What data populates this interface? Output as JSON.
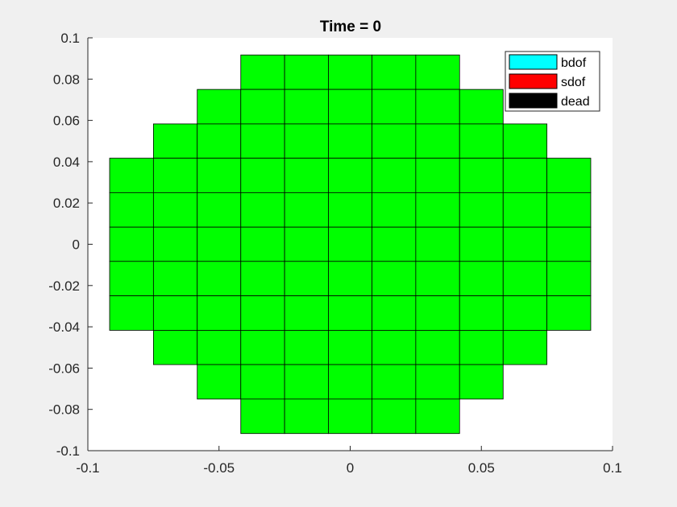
{
  "chart_data": {
    "type": "patch-mesh",
    "title": "Time = 0",
    "xlabel": "",
    "ylabel": "",
    "xlim": [
      -0.1,
      0.1
    ],
    "ylim": [
      -0.1,
      0.1
    ],
    "xticks": [
      -0.1,
      -0.05,
      0,
      0.05,
      0.1
    ],
    "xtick_labels": [
      "-0.1",
      "-0.05",
      "0",
      "0.05",
      "0.1"
    ],
    "yticks": [
      0.1,
      0.08,
      0.06,
      0.04,
      0.02,
      0,
      -0.02,
      -0.04,
      -0.06,
      -0.08,
      -0.1
    ],
    "ytick_labels": [
      "0.1",
      "0.08",
      "0.06",
      "0.04",
      "0.02",
      "0",
      "-0.02",
      "-0.04",
      "-0.06",
      "-0.08",
      "-0.1"
    ],
    "grid": false,
    "legend_position": "top-right",
    "legend": [
      {
        "label": "bdof",
        "color": "#00ffff"
      },
      {
        "label": "sdof",
        "color": "#ff0000"
      },
      {
        "label": "dead",
        "color": "#000000"
      }
    ],
    "cell_color": "#00ff00",
    "edge_color": "#000000",
    "cells": {
      "x_edges": [
        -0.0917,
        -0.075,
        -0.0583,
        -0.0417,
        -0.025,
        -0.0083,
        0.0083,
        0.025,
        0.0417,
        0.0583,
        0.075,
        0.0917
      ],
      "rows": [
        {
          "y": [
            0.075,
            0.0917
          ],
          "x": [
            -0.0417,
            0.0417
          ]
        },
        {
          "y": [
            0.0583,
            0.075
          ],
          "x": [
            -0.0583,
            0.0583
          ]
        },
        {
          "y": [
            0.0417,
            0.0583
          ],
          "x": [
            -0.075,
            0.075
          ]
        },
        {
          "y": [
            0.025,
            0.0417
          ],
          "x": [
            -0.0917,
            0.0917
          ]
        },
        {
          "y": [
            0.0083,
            0.025
          ],
          "x": [
            -0.0917,
            0.0917
          ]
        },
        {
          "y": [
            -0.0083,
            0.0083
          ],
          "x": [
            -0.0917,
            0.0917
          ]
        },
        {
          "y": [
            -0.025,
            -0.0083
          ],
          "x": [
            -0.0917,
            0.0917
          ]
        },
        {
          "y": [
            -0.0417,
            -0.025
          ],
          "x": [
            -0.0917,
            0.0917
          ]
        },
        {
          "y": [
            -0.0583,
            -0.0417
          ],
          "x": [
            -0.075,
            0.075
          ]
        },
        {
          "y": [
            -0.075,
            -0.0583
          ],
          "x": [
            -0.0583,
            0.0583
          ]
        },
        {
          "y": [
            -0.0917,
            -0.075
          ],
          "x": [
            -0.0417,
            0.0417
          ]
        }
      ]
    }
  }
}
